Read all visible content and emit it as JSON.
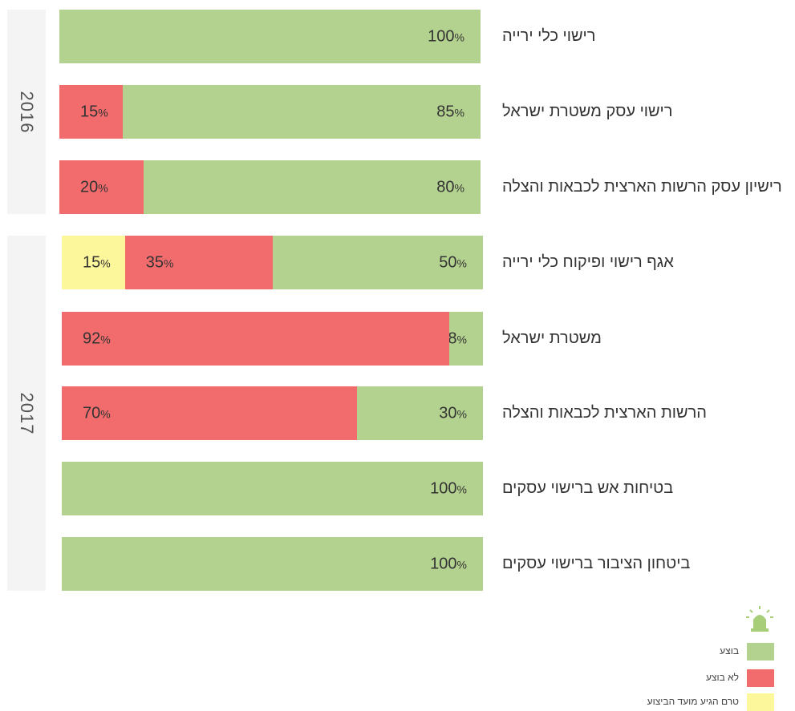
{
  "colors": {
    "done": "#b4d28f",
    "not_done": "#f26b6d",
    "pending": "#fcf79a",
    "alarm": "#a8ce7a"
  },
  "groups": [
    {
      "label": "2016"
    },
    {
      "label": "2017"
    }
  ],
  "legend": {
    "icon": "alarm-light-icon",
    "items": [
      {
        "label": "בוצע",
        "color": "#b4d28f"
      },
      {
        "label": "לא בוצע",
        "color": "#f26b6d"
      },
      {
        "label": "טרם הגיע מועד הביצוע",
        "color": "#fcf79a"
      }
    ]
  },
  "chart_data": {
    "type": "bar",
    "orientation": "horizontal",
    "stacked": true,
    "categories": [
      "רישוי כלי ירייה",
      "רישוי עסק משטרת ישראל",
      "רישיון עסק הרשות הארצית לכבאות והצלה",
      "אגף רישוי ופיקוח כלי ירייה",
      "משטרת ישראל",
      "הרשות הארצית לכבאות והצלה",
      "בטיחות אש ברישוי עסקים",
      "ביטחון הציבור ברישוי עסקים"
    ],
    "category_groups": [
      "2016",
      "2016",
      "2016",
      "2017",
      "2017",
      "2017",
      "2017",
      "2017"
    ],
    "series": [
      {
        "name": "בוצע",
        "values": [
          100,
          85,
          80,
          50,
          8,
          30,
          100,
          100
        ]
      },
      {
        "name": "לא בוצע",
        "values": [
          0,
          15,
          20,
          35,
          92,
          70,
          0,
          0
        ]
      },
      {
        "name": "טרם הגיע מועד הביצוע",
        "values": [
          0,
          0,
          0,
          15,
          0,
          0,
          0,
          0
        ]
      }
    ],
    "unit": "%",
    "xlim": [
      0,
      100
    ],
    "legend_position": "bottom-right"
  }
}
